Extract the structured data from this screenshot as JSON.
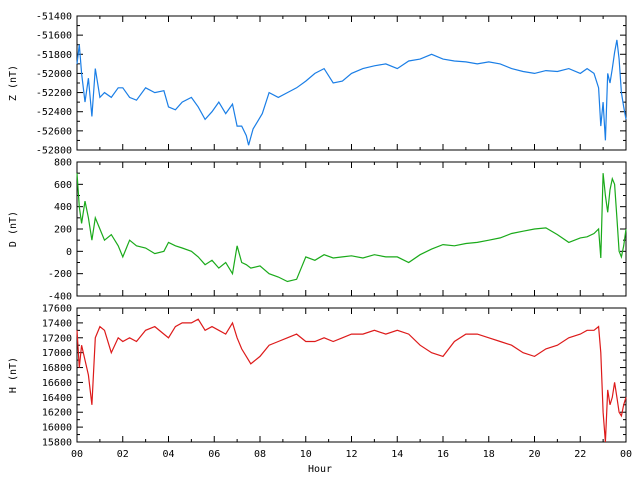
{
  "chart_data": [
    {
      "type": "line",
      "ylabel": "Z (nT)",
      "ylim": [
        -52800,
        -51400
      ],
      "yticks": [
        -52800,
        -52600,
        -52400,
        -52200,
        -52000,
        -51800,
        -51600,
        -51400
      ],
      "color": "#1a7ee6",
      "grid": false,
      "x": [
        0,
        0.1,
        0.2,
        0.35,
        0.5,
        0.65,
        0.8,
        1.0,
        1.2,
        1.5,
        1.8,
        2.0,
        2.3,
        2.6,
        3.0,
        3.4,
        3.8,
        4.0,
        4.3,
        4.6,
        5.0,
        5.3,
        5.6,
        5.9,
        6.2,
        6.5,
        6.8,
        7.0,
        7.2,
        7.4,
        7.5,
        7.7,
        7.9,
        8.1,
        8.4,
        8.8,
        9.2,
        9.6,
        10.0,
        10.4,
        10.8,
        11.2,
        11.6,
        12.0,
        12.5,
        13.0,
        13.5,
        14.0,
        14.5,
        15.0,
        15.5,
        16.0,
        16.5,
        17.0,
        17.5,
        18.0,
        18.5,
        19.0,
        19.5,
        20.0,
        20.5,
        21.0,
        21.5,
        22.0,
        22.3,
        22.6,
        22.8,
        22.9,
        23.0,
        23.1,
        23.2,
        23.3,
        23.4,
        23.5,
        23.6,
        23.7,
        23.8,
        23.9,
        24.0
      ],
      "y": [
        -51900,
        -51700,
        -52000,
        -52300,
        -52050,
        -52450,
        -51950,
        -52250,
        -52200,
        -52250,
        -52150,
        -52150,
        -52250,
        -52280,
        -52150,
        -52200,
        -52180,
        -52350,
        -52380,
        -52300,
        -52250,
        -52350,
        -52480,
        -52400,
        -52300,
        -52420,
        -52320,
        -52550,
        -52550,
        -52650,
        -52750,
        -52580,
        -52500,
        -52420,
        -52200,
        -52250,
        -52200,
        -52150,
        -52080,
        -52000,
        -51950,
        -52100,
        -52080,
        -52000,
        -51950,
        -51920,
        -51900,
        -51950,
        -51870,
        -51850,
        -51800,
        -51850,
        -51870,
        -51880,
        -51900,
        -51880,
        -51900,
        -51950,
        -51980,
        -52000,
        -51970,
        -51980,
        -51950,
        -52000,
        -51950,
        -52000,
        -52150,
        -52550,
        -52300,
        -52700,
        -52000,
        -52100,
        -51950,
        -51780,
        -51650,
        -51850,
        -52200,
        -52350,
        -52480
      ]
    },
    {
      "type": "line",
      "ylabel": "D (nT)",
      "ylim": [
        -400,
        800
      ],
      "yticks": [
        -400,
        -200,
        0,
        200,
        400,
        600,
        800
      ],
      "color": "#1aaa1a",
      "grid": false,
      "x": [
        0,
        0.1,
        0.2,
        0.35,
        0.5,
        0.65,
        0.8,
        1.0,
        1.2,
        1.5,
        1.8,
        2.0,
        2.3,
        2.6,
        3.0,
        3.4,
        3.8,
        4.0,
        4.3,
        4.6,
        5.0,
        5.3,
        5.6,
        5.9,
        6.2,
        6.5,
        6.8,
        7.0,
        7.2,
        7.4,
        7.6,
        8.0,
        8.4,
        8.8,
        9.2,
        9.6,
        10.0,
        10.4,
        10.8,
        11.2,
        11.6,
        12.0,
        12.5,
        13.0,
        13.5,
        14.0,
        14.5,
        15.0,
        15.5,
        16.0,
        16.5,
        17.0,
        17.5,
        18.0,
        18.5,
        19.0,
        19.5,
        20.0,
        20.5,
        21.0,
        21.5,
        22.0,
        22.3,
        22.6,
        22.8,
        22.9,
        23.0,
        23.1,
        23.2,
        23.3,
        23.4,
        23.5,
        23.6,
        23.7,
        23.8,
        23.9,
        24.0
      ],
      "y": [
        700,
        400,
        250,
        450,
        300,
        100,
        300,
        200,
        100,
        150,
        50,
        -50,
        100,
        50,
        30,
        -20,
        0,
        80,
        50,
        30,
        0,
        -50,
        -120,
        -80,
        -150,
        -100,
        -200,
        50,
        -100,
        -120,
        -150,
        -130,
        -200,
        -230,
        -270,
        -250,
        -50,
        -80,
        -30,
        -60,
        -50,
        -40,
        -60,
        -30,
        -50,
        -50,
        -100,
        -30,
        20,
        60,
        50,
        70,
        80,
        100,
        120,
        160,
        180,
        200,
        210,
        150,
        80,
        120,
        130,
        160,
        200,
        -60,
        700,
        500,
        350,
        550,
        650,
        600,
        300,
        0,
        -50,
        50,
        200
      ]
    },
    {
      "type": "line",
      "ylabel": "H (nT)",
      "xlabel": "Hour",
      "xlim": [
        0,
        24
      ],
      "xticks": [
        "00",
        "02",
        "04",
        "06",
        "08",
        "10",
        "12",
        "14",
        "16",
        "18",
        "20",
        "22",
        "00"
      ],
      "ylim": [
        15800,
        17600
      ],
      "yticks": [
        15800,
        16000,
        16200,
        16400,
        16600,
        16800,
        17000,
        17200,
        17400,
        17600
      ],
      "color": "#dd1a1a",
      "grid": false,
      "x": [
        0,
        0.1,
        0.2,
        0.35,
        0.5,
        0.65,
        0.8,
        1.0,
        1.2,
        1.5,
        1.8,
        2.0,
        2.3,
        2.6,
        3.0,
        3.4,
        3.8,
        4.0,
        4.3,
        4.6,
        5.0,
        5.3,
        5.6,
        5.9,
        6.2,
        6.5,
        6.8,
        7.0,
        7.2,
        7.4,
        7.6,
        8.0,
        8.4,
        8.8,
        9.2,
        9.6,
        10.0,
        10.4,
        10.8,
        11.2,
        11.6,
        12.0,
        12.5,
        13.0,
        13.5,
        14.0,
        14.5,
        15.0,
        15.5,
        16.0,
        16.5,
        17.0,
        17.5,
        18.0,
        18.5,
        19.0,
        19.5,
        20.0,
        20.5,
        21.0,
        21.5,
        22.0,
        22.3,
        22.6,
        22.8,
        22.9,
        23.0,
        23.1,
        23.2,
        23.3,
        23.4,
        23.5,
        23.6,
        23.7,
        23.8,
        23.9,
        24.0
      ],
      "y": [
        17300,
        16800,
        17100,
        16900,
        16700,
        16300,
        17200,
        17350,
        17300,
        17000,
        17200,
        17150,
        17200,
        17150,
        17300,
        17350,
        17250,
        17200,
        17350,
        17400,
        17400,
        17450,
        17300,
        17350,
        17300,
        17250,
        17400,
        17200,
        17050,
        16950,
        16850,
        16950,
        17100,
        17150,
        17200,
        17250,
        17150,
        17150,
        17200,
        17150,
        17200,
        17250,
        17250,
        17300,
        17250,
        17300,
        17250,
        17100,
        17000,
        16950,
        17150,
        17250,
        17250,
        17200,
        17150,
        17100,
        17000,
        16950,
        17050,
        17100,
        17200,
        17250,
        17300,
        17300,
        17350,
        17000,
        16200,
        15800,
        16500,
        16300,
        16400,
        16600,
        16400,
        16200,
        16150,
        16300,
        16400
      ]
    }
  ]
}
